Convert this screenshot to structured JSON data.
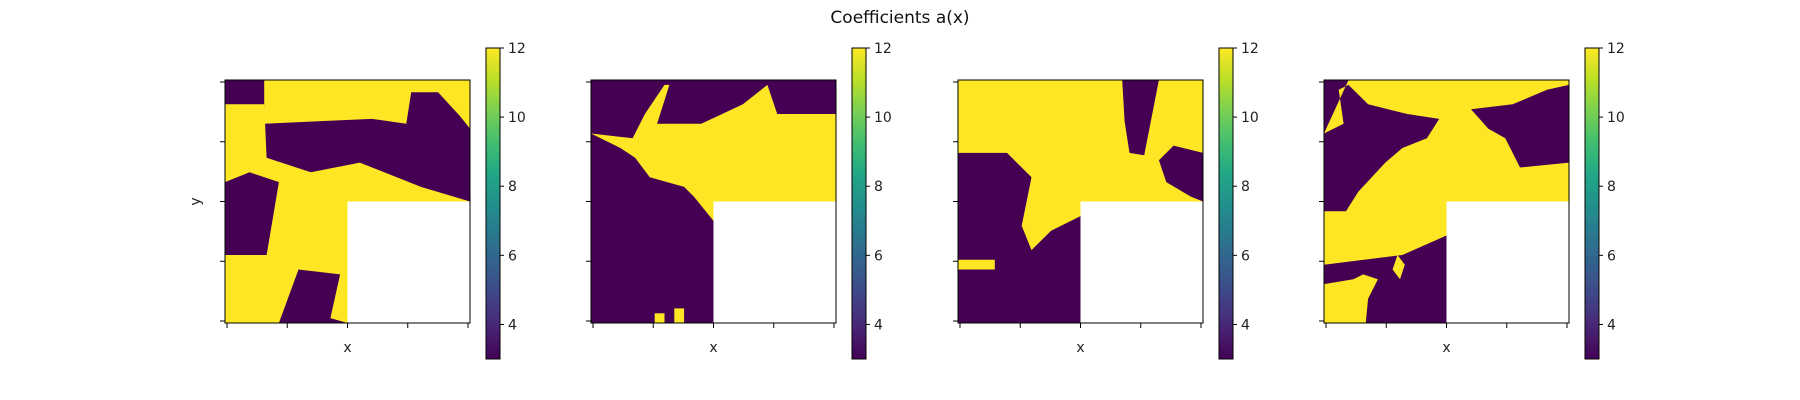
{
  "chart_data": {
    "type": "heatmap",
    "title": "Coefficients a(x)",
    "xlabel": "x",
    "ylabel": "y",
    "colormap": "viridis",
    "color_range": [
      3,
      12
    ],
    "colors": {
      "low": "#440154",
      "high": "#fde725",
      "masked": "#ffffff"
    },
    "colorbar_ticks": [
      4,
      6,
      8,
      10,
      12
    ],
    "panel_count": 4,
    "values_present": [
      3,
      12
    ],
    "masked_region": "bottom-right quadrant",
    "grid": false
  }
}
